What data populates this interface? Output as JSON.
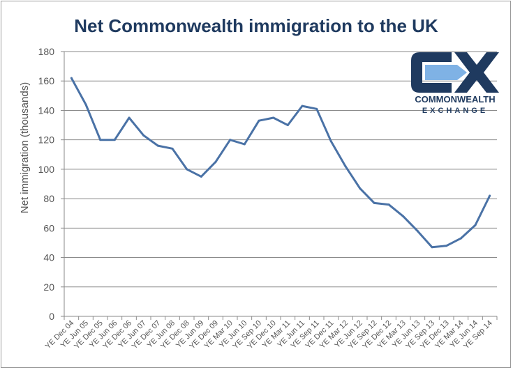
{
  "chart_data": {
    "type": "line",
    "title": "Net Commonwealth immigration to the UK",
    "ylabel": "Net immigration (thousands)",
    "xlabel": "",
    "ylim": [
      0,
      180
    ],
    "yticks": [
      0,
      20,
      40,
      60,
      80,
      100,
      120,
      140,
      160,
      180
    ],
    "grid": true,
    "legend": "none",
    "line_color": "#4a72a6",
    "categories": [
      "YE Dec 04",
      "YE Jun 05",
      "YE Dec 05",
      "YE Jun 06",
      "YE Dec 06",
      "YE Jun 07",
      "YE Dec 07",
      "YE Jun 08",
      "YE Dec 08",
      "YE Jun 09",
      "YE Dec 09",
      "YE Mar 10",
      "YE Jun 10",
      "YE Sep 10",
      "YE Dec 10",
      "YE Mar 11",
      "YE Jun 11",
      "YE Sep 11",
      "YE Dec 11",
      "YE Mar 12",
      "YE Jun 12",
      "YE Sep 12",
      "YE Dec 12",
      "YE Mar 13",
      "YE Jun 13",
      "YE Sep 13",
      "YE Dec 13",
      "YE Mar 14",
      "YE Jun 14",
      "YE Sep 14"
    ],
    "values": [
      162,
      144,
      120,
      120,
      135,
      123,
      116,
      114,
      100,
      95,
      105,
      120,
      117,
      133,
      135,
      130,
      143,
      141,
      119,
      102,
      87,
      77,
      76,
      68,
      58,
      47,
      48,
      53,
      62,
      82
    ]
  },
  "logo": {
    "letters": "CX",
    "line1": "COMMONWEALTH",
    "line2": "EXCHANGE",
    "primary_color": "#1f3a5f",
    "accent_color": "#7fb2e5"
  }
}
